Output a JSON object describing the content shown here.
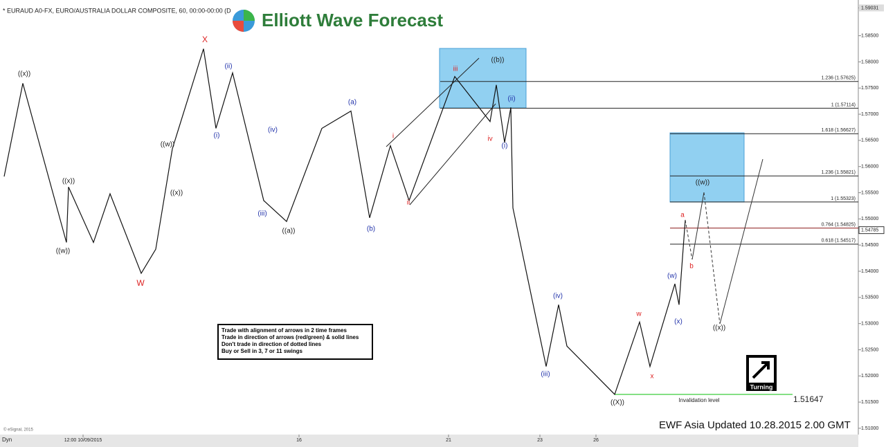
{
  "chart_data": {
    "type": "line",
    "title": "* EURAUD A0-FX, EURO/AUSTRALIA DOLLAR COMPOSITE, 60, 00:00-00:00 (D",
    "logo": "Elliott Wave Forecast",
    "footer": "EWF Asia Updated 10.28.2015 2.00 GMT",
    "copyright": "© eSignal, 2015",
    "mode": "Dyn",
    "icon_label": "Turning",
    "rules": [
      "Trade with alignment of arrows in 2 time frames",
      "Trade in direction of arrows (red/green) & solid lines",
      "Don't trade in direction of dotted lines",
      "Buy or Sell in 3, 7 or 11 swings"
    ],
    "x": [
      2,
      11,
      32,
      33,
      45,
      53,
      68,
      75,
      83,
      98,
      104,
      112,
      127,
      138,
      155,
      169,
      178,
      188,
      197,
      219,
      236,
      239,
      243,
      246,
      247,
      263,
      269,
      273,
      296,
      308,
      313,
      325,
      327,
      330
    ],
    "values": [
      1.5581,
      1.5759,
      1.5455,
      1.5561,
      1.5455,
      1.5548,
      1.5396,
      1.5442,
      1.5634,
      1.5825,
      1.5673,
      1.5779,
      1.5535,
      1.5495,
      1.5673,
      1.5706,
      1.5502,
      1.564,
      1.5535,
      1.5772,
      1.5686,
      1.5756,
      1.5646,
      1.5713,
      1.5521,
      1.5218,
      1.5336,
      1.5257,
      1.51647,
      1.5303,
      1.5218,
      1.5376,
      1.5336,
      1.5498
    ],
    "color": "#111111",
    "xlim": [
      0,
      412
    ],
    "xticks": [
      {
        "value": 40,
        "label": "12:00 10/09/2015"
      },
      {
        "value": 144,
        "label": "16"
      },
      {
        "value": 216,
        "label": "21"
      },
      {
        "value": 260,
        "label": "23"
      },
      {
        "value": 287,
        "label": "26"
      }
    ],
    "ylim": [
      1.5088,
      1.5903
    ],
    "yticks": [
      {
        "value": 1.51,
        "label": "1.51000"
      },
      {
        "value": 1.515,
        "label": "1.51500"
      },
      {
        "value": 1.52,
        "label": "1.52000"
      },
      {
        "value": 1.525,
        "label": "1.52500"
      },
      {
        "value": 1.53,
        "label": "1.53000"
      },
      {
        "value": 1.535,
        "label": "1.53500"
      },
      {
        "value": 1.54,
        "label": "1.54000"
      },
      {
        "value": 1.545,
        "label": "1.54500"
      },
      {
        "value": 1.55,
        "label": "1.55000"
      },
      {
        "value": 1.555,
        "label": "1.55500"
      },
      {
        "value": 1.56,
        "label": "1.56000"
      },
      {
        "value": 1.565,
        "label": "1.56500"
      },
      {
        "value": 1.57,
        "label": "1.57000"
      },
      {
        "value": 1.575,
        "label": "1.57500"
      },
      {
        "value": 1.58,
        "label": "1.58000"
      },
      {
        "value": 1.585,
        "label": "1.58500"
      },
      {
        "value": 1.59031,
        "label": "1.59031"
      }
    ],
    "last_price": {
      "value": 1.54785,
      "label": "1.54785"
    },
    "levels": [
      {
        "value": 1.57625,
        "label": "1.236 (1.57625)"
      },
      {
        "value": 1.57114,
        "label": "1 (1.57114)"
      },
      {
        "value": 1.56627,
        "label": "1.618 (1.56627)"
      },
      {
        "value": 1.55821,
        "label": "1.236 (1.55821)"
      },
      {
        "value": 1.55323,
        "label": "1 (1.55323)"
      },
      {
        "value": 1.54825,
        "label": "0.764 (1.54825)"
      },
      {
        "value": 1.54517,
        "label": "0.618 (1.54517)"
      }
    ],
    "invalidation": {
      "value": 1.51647,
      "label": "1.51647",
      "text": "Invalidation level"
    },
    "annotations": [
      "((x))",
      "((w))",
      "((x))",
      "W",
      "((x))",
      "((w))",
      "X",
      "(i)",
      "(ii)",
      "(iii)",
      "(iv)",
      "((a))",
      "(a)",
      "(b)",
      "i",
      "ii",
      "iii",
      "iv",
      "((b))",
      "(ii)",
      "(i)",
      "(iii)",
      "(iv)",
      "((X))",
      "w",
      "x",
      "(x)",
      "(w)",
      "a",
      "b",
      "((w))",
      "((x))"
    ]
  }
}
